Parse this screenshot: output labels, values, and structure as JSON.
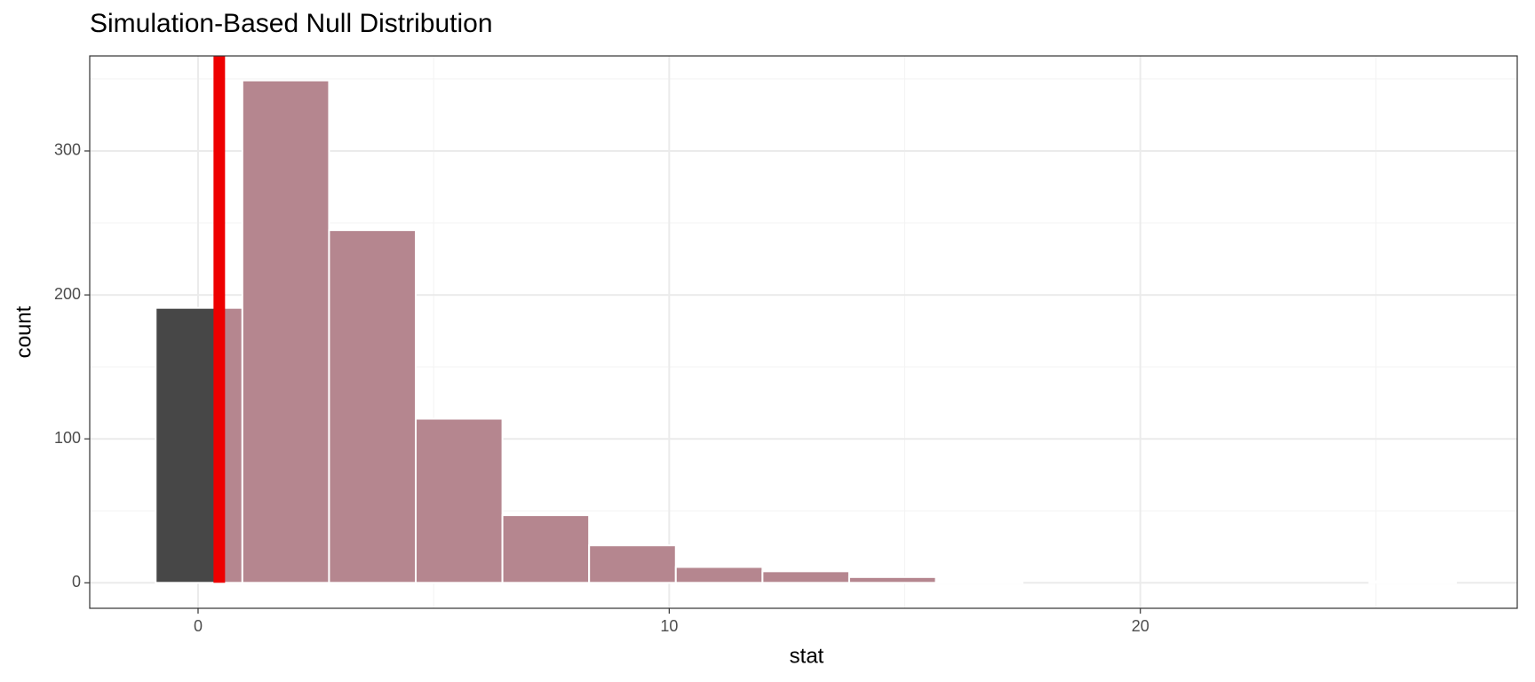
{
  "chart_data": {
    "type": "histogram",
    "title": "Simulation-Based Null Distribution",
    "x_label": "stat",
    "y_label": "count",
    "bins": [
      -0.9,
      0.94,
      2.78,
      4.62,
      6.46,
      8.3,
      10.14,
      11.98,
      13.82,
      15.66,
      17.5,
      19.34,
      21.18,
      23.02,
      24.86,
      26.7
    ],
    "counts": [
      191,
      349,
      245,
      114,
      47,
      26,
      11,
      8,
      4,
      1,
      0,
      0,
      0,
      0,
      1
    ],
    "obs_stat": 0.45,
    "shade_direction": "right",
    "color": "#474747",
    "shade_color": "#b5868f",
    "obs_color": "#ee0000",
    "xlim": [
      -2.3,
      28
    ],
    "ylim": [
      -17.7,
      366
    ],
    "xticks": [
      0,
      10,
      20
    ],
    "yticks": [
      0,
      100,
      200,
      300
    ],
    "x_minor_grid": [
      5,
      15,
      25
    ],
    "y_minor_grid": [
      50,
      150,
      250,
      350
    ],
    "grid": true
  }
}
